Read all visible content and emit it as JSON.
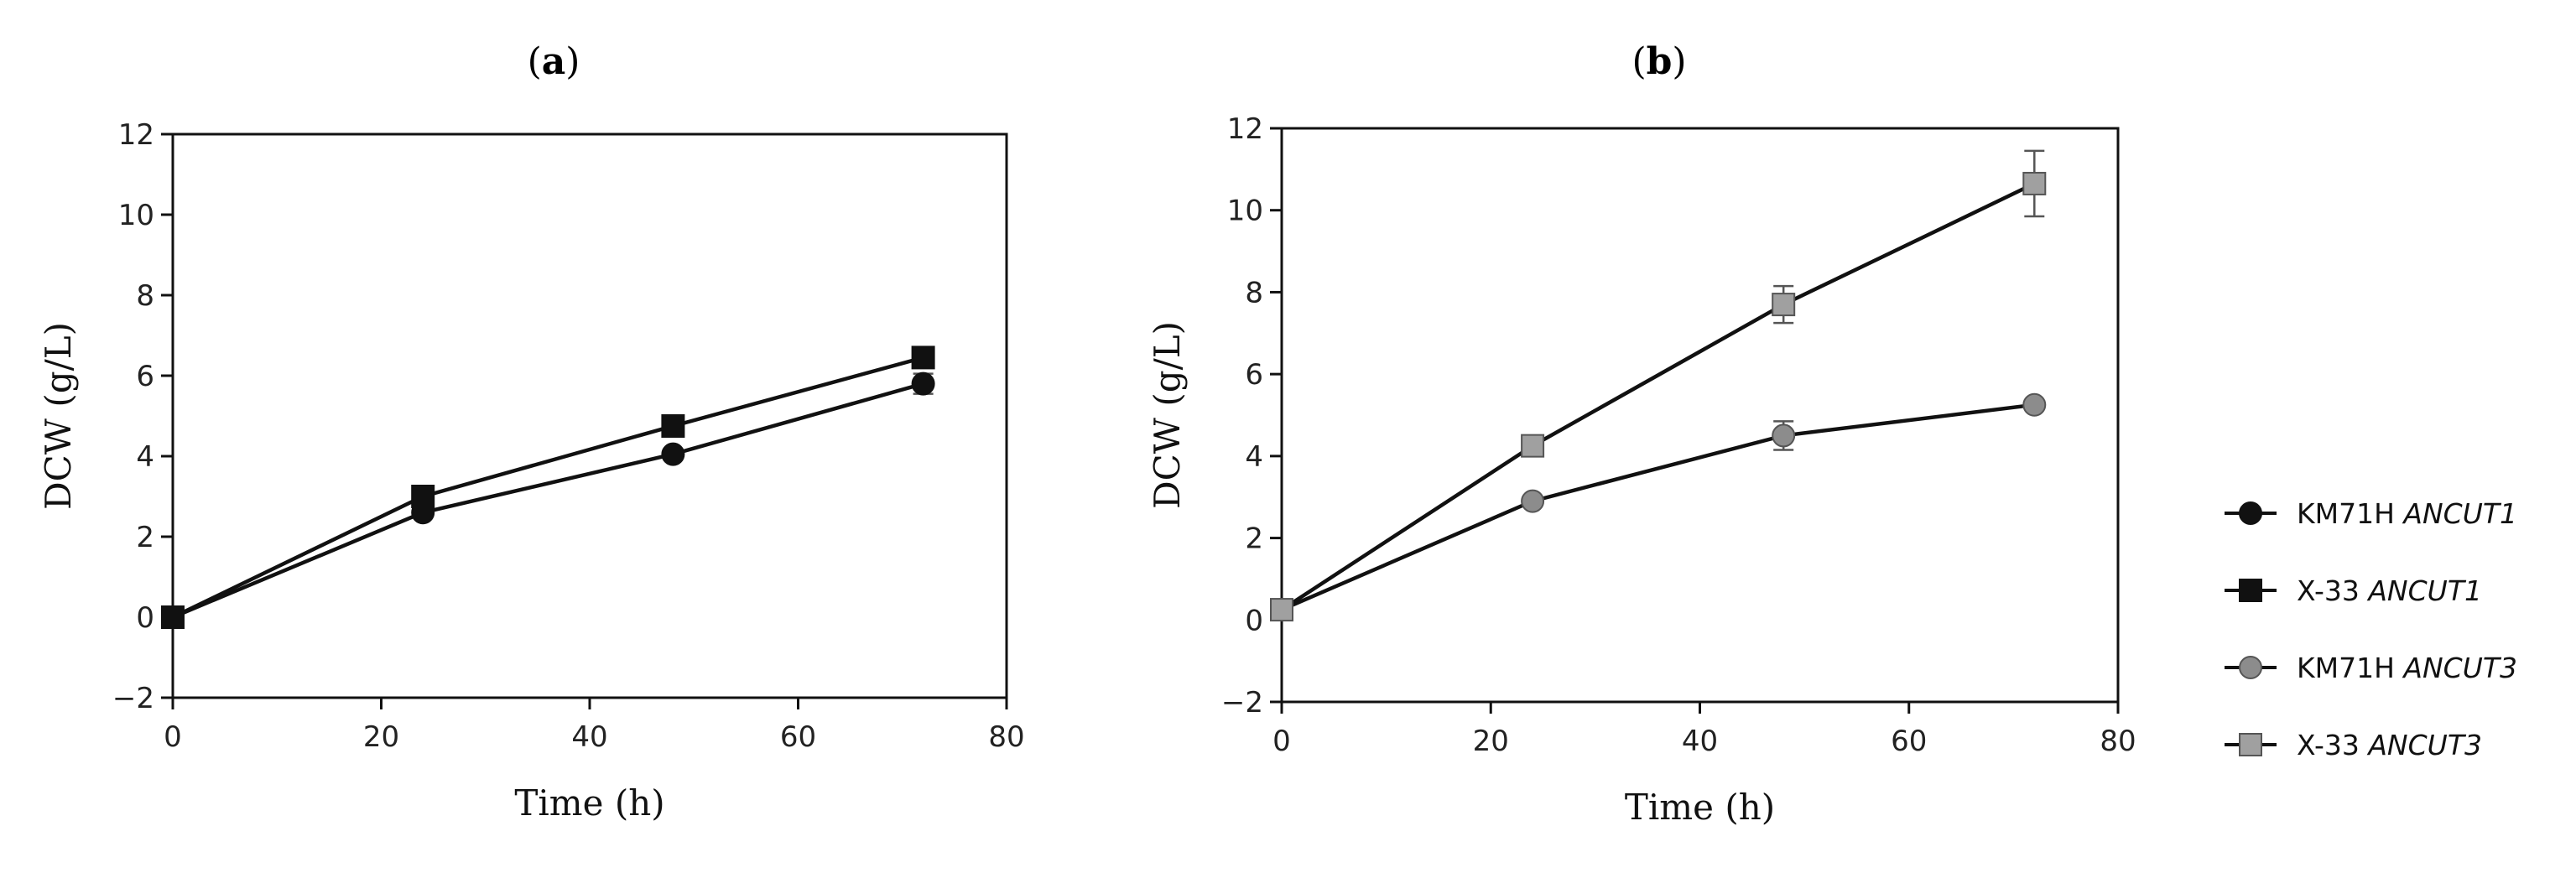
{
  "panels": [
    {
      "label": "a"
    },
    {
      "label": "b"
    }
  ],
  "legend": [
    {
      "strain": "KM71H",
      "gene": "ANCUT1",
      "color": "#111111",
      "marker": "circle"
    },
    {
      "strain": "X-33",
      "gene": "ANCUT1",
      "color": "#111111",
      "marker": "square"
    },
    {
      "strain": "KM71H",
      "gene": "ANCUT3",
      "color": "#8c8c8c",
      "marker": "circle"
    },
    {
      "strain": "X-33",
      "gene": "ANCUT3",
      "color": "#a0a0a0",
      "marker": "square"
    }
  ],
  "chart_data": [
    {
      "type": "line",
      "panel": "a",
      "xlabel": "Time (h)",
      "ylabel": "DCW (g/L)",
      "xlim": [
        0,
        80
      ],
      "ylim": [
        -2,
        12
      ],
      "xticks": [
        0,
        20,
        40,
        60,
        80
      ],
      "yticks": [
        -2,
        0,
        2,
        4,
        6,
        8,
        10,
        12
      ],
      "x": [
        0,
        24,
        48,
        72
      ],
      "series": [
        {
          "name": "KM71H ANCUT1",
          "values": [
            0,
            2.6,
            4.05,
            5.8
          ],
          "err": [
            0,
            0.1,
            0.1,
            0.25
          ],
          "color": "#111111",
          "marker": "circle"
        },
        {
          "name": "X-33 ANCUT1",
          "values": [
            0,
            3.0,
            4.75,
            6.45
          ],
          "err": [
            0,
            0.1,
            0.1,
            0.1
          ],
          "color": "#111111",
          "marker": "square"
        }
      ]
    },
    {
      "type": "line",
      "panel": "b",
      "xlabel": "Time (h)",
      "ylabel": "DCW (g/L)",
      "xlim": [
        0,
        80
      ],
      "ylim": [
        -2,
        12
      ],
      "xticks": [
        0,
        20,
        40,
        60,
        80
      ],
      "yticks": [
        -2,
        0,
        2,
        4,
        6,
        8,
        10,
        12
      ],
      "x": [
        0,
        24,
        48,
        72
      ],
      "series": [
        {
          "name": "KM71H ANCUT3",
          "values": [
            0.25,
            2.9,
            4.5,
            5.25
          ],
          "err": [
            0,
            0.1,
            0.35,
            0.1
          ],
          "color": "#8c8c8c",
          "marker": "circle"
        },
        {
          "name": "X-33 ANCUT3",
          "values": [
            0.25,
            4.25,
            7.7,
            10.65
          ],
          "err": [
            0,
            0.1,
            0.45,
            0.8
          ],
          "color": "#a0a0a0",
          "marker": "square"
        }
      ]
    }
  ]
}
